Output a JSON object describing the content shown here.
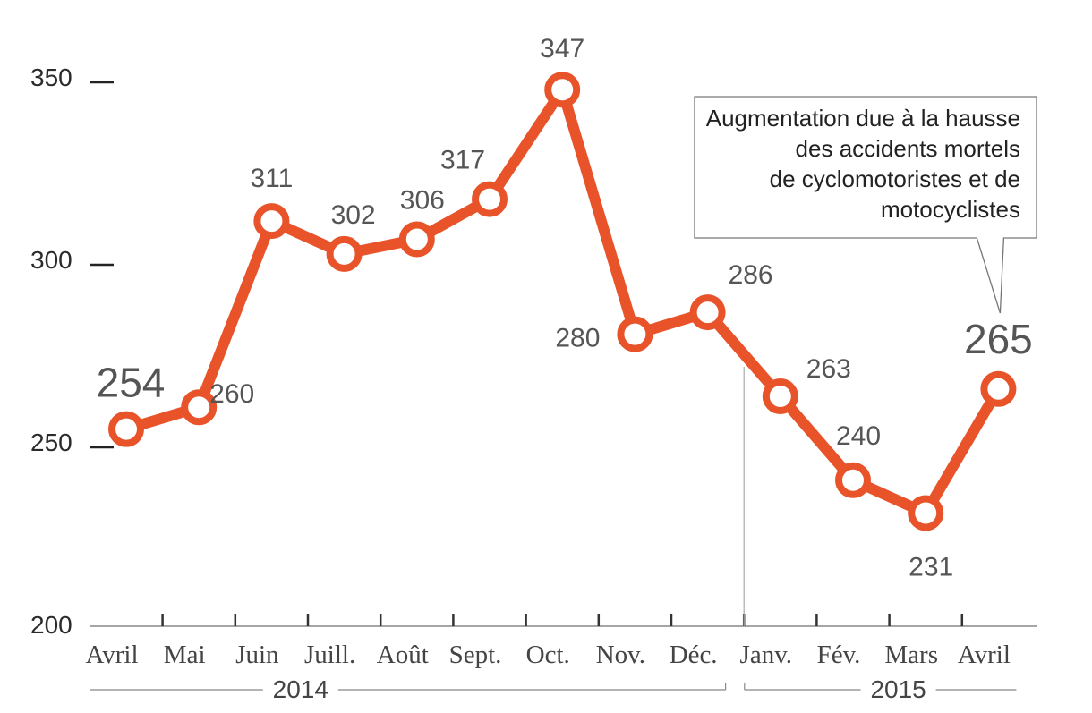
{
  "chart_data": {
    "type": "line",
    "categories": [
      "Avril",
      "Mai",
      "Juin",
      "Juill.",
      "Août",
      "Sept.",
      "Oct.",
      "Nov.",
      "Déc.",
      "Janv.",
      "Fév.",
      "Mars",
      "Avril"
    ],
    "values": [
      254,
      260,
      311,
      302,
      306,
      317,
      347,
      280,
      286,
      263,
      240,
      231,
      265
    ],
    "value_labels": [
      "254",
      "260",
      "311",
      "302",
      "306",
      "317",
      "347",
      "280",
      "286",
      "263",
      "240",
      "231",
      "265"
    ],
    "year_groups": [
      {
        "label": "2014",
        "from": 0,
        "to": 8
      },
      {
        "label": "2015",
        "from": 9,
        "to": 12
      }
    ],
    "ylim": [
      200,
      350
    ],
    "yticks": [
      200,
      250,
      300,
      350
    ],
    "ytick_labels": [
      "200",
      "250",
      "300",
      "350"
    ],
    "title": "",
    "xlabel": "",
    "ylabel": "",
    "grid": false,
    "legend": "none",
    "line_color": "#e8532a",
    "annotation": {
      "lines": [
        "Augmentation due à la hausse",
        "des accidents mortels",
        "de cyclomotoristes et de",
        "motocyclistes"
      ],
      "target_index": 12
    }
  }
}
